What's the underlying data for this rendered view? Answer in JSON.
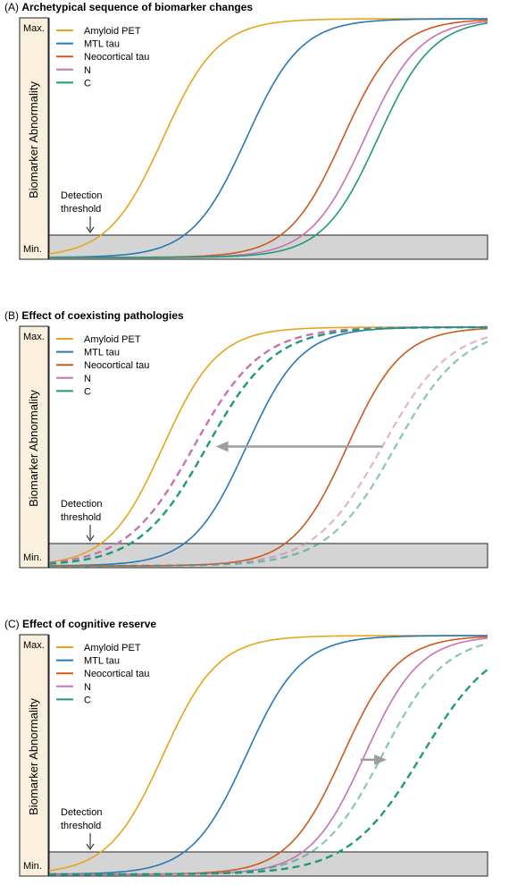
{
  "chart_data": [
    {
      "type": "line",
      "panel_letter": "(A)",
      "title": "Archetypical sequence of biomarker changes",
      "ylabel": "Biomarker Abnormality",
      "y_ticks": [
        "Max.",
        "Min."
      ],
      "annotation": [
        "Detection",
        "threshold"
      ],
      "legend": [
        "Amyloid PET",
        "MTL tau",
        "Neocortical tau",
        "N",
        "C"
      ],
      "colors": {
        "Amyloid PET": "#e8a41c",
        "MTL tau": "#2878b8",
        "Neocortical tau": "#cc5a1c",
        "N": "#c672b4",
        "C": "#1f9a76"
      },
      "series": [
        {
          "name": "Amyloid PET",
          "midpoint": 0.26,
          "steepness": 16,
          "style": "solid"
        },
        {
          "name": "MTL tau",
          "midpoint": 0.45,
          "steepness": 16,
          "style": "solid"
        },
        {
          "name": "Neocortical tau",
          "midpoint": 0.67,
          "steepness": 16,
          "style": "solid"
        },
        {
          "name": "N",
          "midpoint": 0.72,
          "steepness": 16,
          "style": "solid"
        },
        {
          "name": "C",
          "midpoint": 0.75,
          "steepness": 16,
          "style": "solid"
        }
      ],
      "arrow": null
    },
    {
      "type": "line",
      "panel_letter": "(B)",
      "title": "Effect of coexisting pathologies",
      "ylabel": "Biomarker Abnormality",
      "y_ticks": [
        "Max.",
        "Min."
      ],
      "annotation": [
        "Detection",
        "threshold"
      ],
      "legend": [
        "Amyloid PET",
        "MTL tau",
        "Neocortical tau",
        "N",
        "C"
      ],
      "colors": {
        "Amyloid PET": "#e8a41c",
        "MTL tau": "#2878b8",
        "Neocortical tau": "#cc5a1c",
        "N": "#c672b4",
        "C": "#1f9a76"
      },
      "series": [
        {
          "name": "Amyloid PET",
          "midpoint": 0.26,
          "steepness": 16,
          "style": "solid"
        },
        {
          "name": "MTL tau",
          "midpoint": 0.45,
          "steepness": 16,
          "style": "solid"
        },
        {
          "name": "Neocortical tau",
          "midpoint": 0.68,
          "steepness": 16,
          "style": "solid"
        },
        {
          "name": "N",
          "midpoint": 0.33,
          "steepness": 13,
          "style": "dashed"
        },
        {
          "name": "C",
          "midpoint": 0.36,
          "steepness": 13,
          "style": "dashed"
        },
        {
          "name": "N",
          "midpoint": 0.76,
          "steepness": 13,
          "style": "dashed-faded"
        },
        {
          "name": "C",
          "midpoint": 0.79,
          "steepness": 13,
          "style": "dashed-faded"
        }
      ],
      "arrow": {
        "direction": "left",
        "from": 0.76,
        "to": 0.38,
        "level": 0.5
      }
    },
    {
      "type": "line",
      "panel_letter": "(C)",
      "title": "Effect of cognitive reserve",
      "ylabel": "Biomarker Abnormality",
      "y_ticks": [
        "Max.",
        "Min."
      ],
      "annotation": [
        "Detection",
        "threshold"
      ],
      "legend": [
        "Amyloid PET",
        "MTL tau",
        "Neocortical tau",
        "N",
        "C"
      ],
      "colors": {
        "Amyloid PET": "#e8a41c",
        "MTL tau": "#2878b8",
        "Neocortical tau": "#cc5a1c",
        "N": "#c672b4",
        "C": "#1f9a76"
      },
      "series": [
        {
          "name": "Amyloid PET",
          "midpoint": 0.26,
          "steepness": 16,
          "style": "solid"
        },
        {
          "name": "MTL tau",
          "midpoint": 0.45,
          "steepness": 16,
          "style": "solid"
        },
        {
          "name": "Neocortical tau",
          "midpoint": 0.67,
          "steepness": 16,
          "style": "solid"
        },
        {
          "name": "N",
          "midpoint": 0.72,
          "steepness": 16,
          "style": "solid"
        },
        {
          "name": "C",
          "midpoint": 0.76,
          "steepness": 14,
          "style": "dashed-faded"
        },
        {
          "name": "C",
          "midpoint": 0.85,
          "steepness": 12,
          "style": "dashed"
        }
      ],
      "arrow": {
        "direction": "right",
        "from": 0.71,
        "to": 0.77,
        "level": 0.48
      }
    }
  ]
}
